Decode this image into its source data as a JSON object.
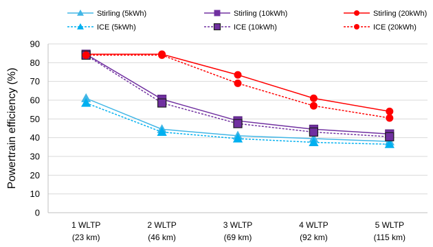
{
  "chart_data": {
    "type": "line",
    "categories": [
      [
        "1 WLTP",
        "(23 km)"
      ],
      [
        "2 WLTP",
        "(46 km)"
      ],
      [
        "3 WLTP",
        "(69 km)"
      ],
      [
        "4 WLTP",
        "(92 km)"
      ],
      [
        "5 WLTP",
        "(115 km)"
      ]
    ],
    "ylabel": "Powertrain efficiency (%)",
    "ylim": [
      0,
      90
    ],
    "yticks": [
      0,
      10,
      20,
      30,
      40,
      50,
      60,
      70,
      80,
      90
    ],
    "grid": true,
    "legend_position": "top",
    "series": [
      {
        "name": "Stirling (5kWh)",
        "color": "#41b6e6",
        "marker": "triangle",
        "dash": false,
        "values": [
          61,
          44.5,
          41,
          39.5,
          38
        ]
      },
      {
        "name": "Stirling (10kWh)",
        "color": "#7030a0",
        "marker": "square",
        "dash": false,
        "values": [
          84.5,
          60.5,
          49,
          44.5,
          42
        ]
      },
      {
        "name": "Stirling (20kWh)",
        "color": "#ff0000",
        "marker": "circle",
        "dash": false,
        "values": [
          84.5,
          84.5,
          73.5,
          61,
          54
        ]
      },
      {
        "name": "ICE (5kWh)",
        "color": "#00b0f0",
        "marker": "triangle",
        "dash": true,
        "values": [
          58.5,
          43,
          39.5,
          37.5,
          36.5
        ]
      },
      {
        "name": "ICE (10kWh)",
        "color": "#7030a0",
        "marker": "square",
        "dash": true,
        "values": [
          84,
          58.5,
          47.5,
          43,
          40.5
        ]
      },
      {
        "name": "ICE (20kWh)",
        "color": "#ff0000",
        "marker": "circle",
        "dash": true,
        "values": [
          84,
          84,
          69,
          57,
          50.5
        ]
      }
    ]
  }
}
